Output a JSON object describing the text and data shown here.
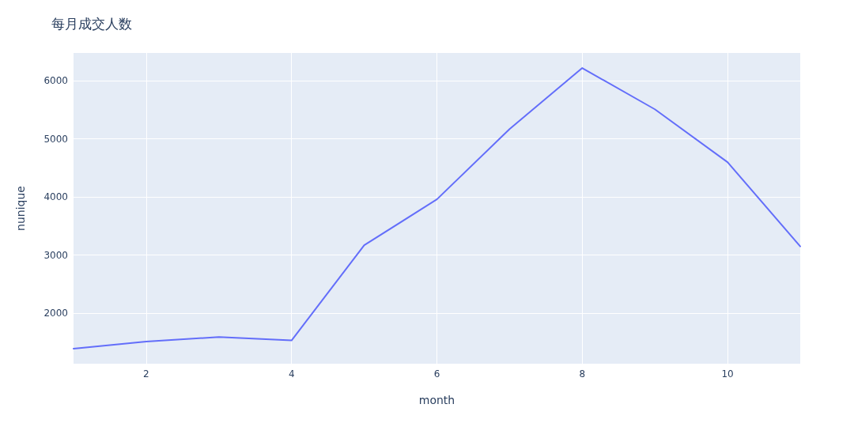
{
  "chart_data": {
    "type": "line",
    "title": "每月成交人数",
    "xlabel": "month",
    "ylabel": "nunique",
    "x": [
      1,
      2,
      3,
      4,
      5,
      6,
      7,
      8,
      9,
      10,
      11
    ],
    "values": [
      1390,
      1510,
      1590,
      1530,
      3170,
      3960,
      5170,
      6220,
      5510,
      4600,
      3150
    ],
    "color": "#636efa",
    "line_style": "solid",
    "xlim": [
      1,
      11
    ],
    "xticks": [
      2,
      4,
      6,
      8,
      10
    ],
    "ylim": [
      1130,
      6480
    ],
    "yticks": [
      2000,
      3000,
      4000,
      5000,
      6000
    ],
    "grid": true
  }
}
